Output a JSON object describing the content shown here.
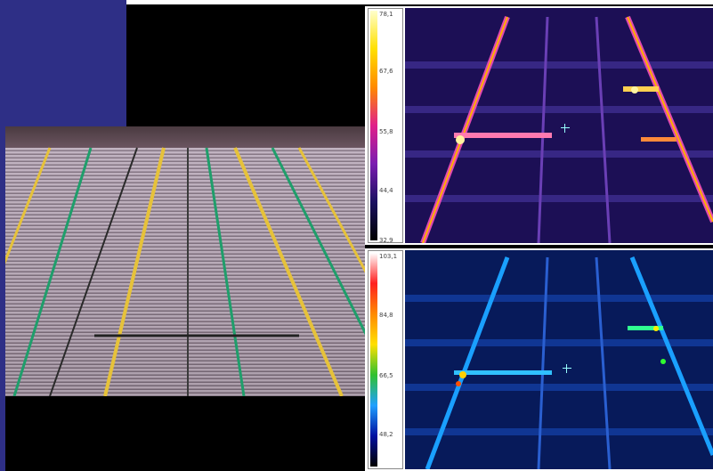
{
  "scene": {
    "photo_label": "",
    "colors": {
      "background": "#000000",
      "frame_blue": "#2e2f86",
      "rail_yellow": "#e6c23a",
      "rail_green": "#1f9e6b"
    }
  },
  "thermal_top": {
    "palette": "ironbow",
    "scale_ticks": [
      "78,1",
      "67,6",
      "55,8",
      "44,4",
      "32,9"
    ]
  },
  "thermal_bottom": {
    "palette": "rainbow",
    "scale_ticks": [
      "103,1",
      "84,8",
      "66,5",
      "48,2"
    ]
  }
}
